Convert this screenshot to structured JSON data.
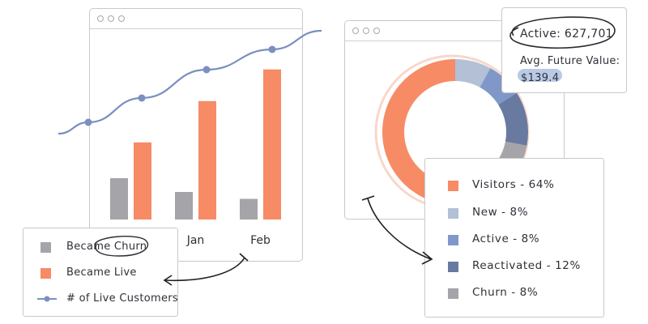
{
  "colors": {
    "orange": "#f68b66",
    "gray": "#a4a4a9",
    "line": "#7b8fc0",
    "light_blue": "#b3c0d6",
    "mid_blue": "#7f98c9",
    "dark_blue": "#687aa0",
    "window_border": "#c9c9c9",
    "text": "#2f3138",
    "highlight": "#b9c9e6"
  },
  "left_window": {
    "icons": [
      "window-dot",
      "window-dot",
      "window-dot"
    ]
  },
  "right_window": {
    "icons": [
      "window-dot",
      "window-dot",
      "window-dot"
    ]
  },
  "stats_card": {
    "active_label": "Active: 627,701",
    "future_label": "Avg. Future Value:",
    "future_value": "$139.4"
  },
  "chart_data": [
    {
      "type": "bar",
      "categories": [
        "",
        "Jan",
        "Feb"
      ],
      "series": [
        {
          "name": "Became Churn",
          "values": [
            1.5,
            1.0,
            0.75
          ],
          "color": "#a4a4a9"
        },
        {
          "name": "Became Live",
          "values": [
            2.8,
            4.3,
            5.45
          ],
          "color": "#f68b66"
        },
        {
          "name": "# of Live Customers",
          "type": "line",
          "values": [
            3.55,
            4.6,
            5.6
          ],
          "color": "#7b8fc0"
        }
      ],
      "ylim": [
        0,
        6.5
      ],
      "grid": false,
      "legend": {
        "placement": "bottom-left",
        "entries": [
          {
            "label": "Became Churn",
            "marker": "square",
            "color": "#a4a4a9"
          },
          {
            "label": "Became Live",
            "marker": "square",
            "color": "#f68b66"
          },
          {
            "label": "# of Live Customers",
            "marker": "line-dot",
            "color": "#7b8fc0"
          }
        ]
      }
    },
    {
      "type": "pie",
      "donut": true,
      "slices": [
        {
          "label": "Visitors",
          "value": 64,
          "color": "#f68b66"
        },
        {
          "label": "New",
          "value": 8,
          "color": "#b3c0d6"
        },
        {
          "label": "Active",
          "value": 8,
          "color": "#7f98c9"
        },
        {
          "label": "Reactivated",
          "value": 12,
          "color": "#687aa0"
        },
        {
          "label": "Churn",
          "value": 8,
          "color": "#a4a4a9"
        }
      ],
      "legend": {
        "placement": "bottom-right",
        "entries": [
          {
            "text": "Visitors - 64%",
            "color": "#f68b66"
          },
          {
            "text": "New - 8%",
            "color": "#b3c0d6"
          },
          {
            "text": "Active - 8%",
            "color": "#7f98c9"
          },
          {
            "text": "Reactivated - 12%",
            "color": "#687aa0"
          },
          {
            "text": "Churn - 8%",
            "color": "#a4a4a9"
          }
        ]
      }
    }
  ]
}
